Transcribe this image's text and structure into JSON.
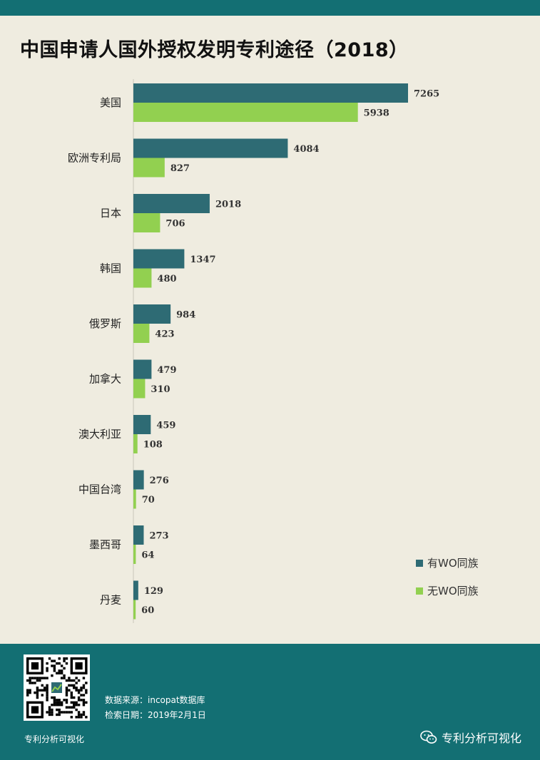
{
  "title": "中国申请人国外授权发明专利途径（2018）",
  "colors": {
    "series1": "#2e6b74",
    "series2": "#92d050",
    "band": "#136f73",
    "background": "#efece0"
  },
  "chart_data": {
    "type": "bar",
    "orientation": "horizontal",
    "title": "中国申请人国外授权发明专利途径（2018）",
    "categories": [
      "美国",
      "欧洲专利局",
      "日本",
      "韩国",
      "俄罗斯",
      "加拿大",
      "澳大利亚",
      "中国台湾",
      "墨西哥",
      "丹麦"
    ],
    "series": [
      {
        "name": "有WO同族",
        "values": [
          7265,
          4084,
          2018,
          1347,
          984,
          479,
          459,
          276,
          273,
          129
        ]
      },
      {
        "name": "无WO同族",
        "values": [
          5938,
          827,
          706,
          480,
          423,
          310,
          108,
          70,
          64,
          60
        ]
      }
    ],
    "xlim": [
      0,
      8000
    ],
    "legend": "bottom-right",
    "grid": false,
    "data_labels": true
  },
  "footer": {
    "qr_caption": "专利分析可视化",
    "source_line": "数据来源：incopat数据库",
    "date_line": "检索日期：2019年2月1日",
    "brand": "专利分析可视化"
  }
}
